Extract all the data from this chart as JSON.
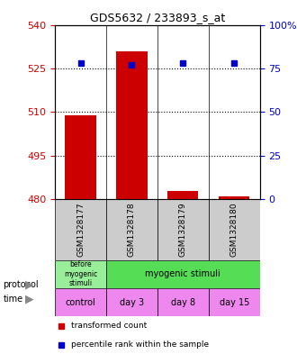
{
  "title": "GDS5632 / 233893_s_at",
  "samples": [
    "GSM1328177",
    "GSM1328178",
    "GSM1328179",
    "GSM1328180"
  ],
  "bar_values": [
    509,
    531,
    483,
    481
  ],
  "bar_bottom": 480,
  "percentile_values": [
    78,
    77,
    78,
    78
  ],
  "ylim_left": [
    480,
    540
  ],
  "ylim_right": [
    0,
    100
  ],
  "yticks_left": [
    480,
    495,
    510,
    525,
    540
  ],
  "yticks_right": [
    0,
    25,
    50,
    75,
    100
  ],
  "ytick_labels_right": [
    "0",
    "25",
    "50",
    "75",
    "100%"
  ],
  "bar_color": "#cc0000",
  "dot_color": "#0000cc",
  "bar_width": 0.6,
  "protocol_labels": [
    "before\nmyogenic\nstimuli",
    "myogenic stimuli"
  ],
  "protocol_colors": [
    "#99ee99",
    "#55dd55"
  ],
  "time_labels": [
    "control",
    "day 3",
    "day 8",
    "day 15"
  ],
  "time_color": "#ee88ee",
  "legend_bar_label": "transformed count",
  "legend_dot_label": "percentile rank within the sample",
  "grid_color": "#000000",
  "background_color": "#ffffff",
  "plot_bg": "#ffffff",
  "left_tick_color": "#cc0000",
  "right_tick_color": "#0000cc",
  "protocol_row_label": "protocol",
  "time_row_label": "time",
  "arrow_color": "#999999"
}
